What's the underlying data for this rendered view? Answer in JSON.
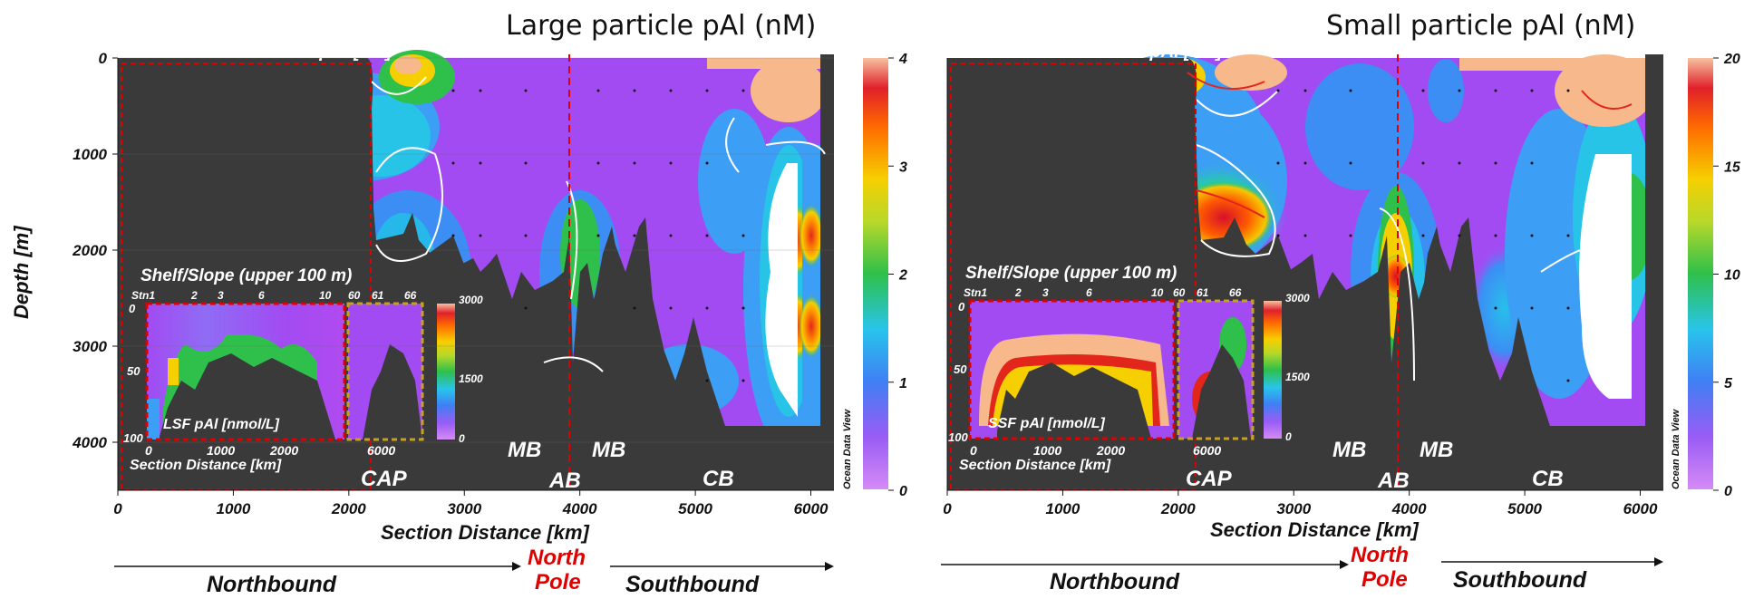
{
  "chart_data": [
    {
      "type": "heatmap",
      "title": "Large particle pAl (nM)",
      "xlabel": "Section Distance [km]",
      "ylabel": "Depth [m]",
      "xlim": [
        0,
        6200
      ],
      "ylim": [
        0,
        4500
      ],
      "x_ticks": [
        "0",
        "1000",
        "2000",
        "3000",
        "4000",
        "5000",
        "6000"
      ],
      "y_ticks": [
        "0",
        "1000",
        "2000",
        "3000",
        "4000"
      ],
      "colorbar": {
        "min": 0,
        "max": 4,
        "ticks": [
          "0",
          "1",
          "2",
          "3",
          "4"
        ]
      },
      "contour_header": "White Contours: LSF pAl [nM]",
      "basins": [
        "CAP",
        "MB",
        "AB",
        "MB",
        "CB"
      ],
      "inset": {
        "title": "Shelf/Slope (upper 100 m)",
        "label": "LSF pAl [nmol/L]",
        "xlabel": "Section Distance [km]",
        "stations": [
          "Stn1",
          "2",
          "3",
          "6",
          "10",
          "60",
          "61",
          "66"
        ],
        "x_ticks": [
          "0",
          "1000",
          "2000",
          "6000"
        ],
        "y_ticks": [
          "0",
          "50",
          "100"
        ],
        "colorbar_ticks": [
          "3000",
          "1500",
          "0"
        ]
      },
      "colorbar_credit": "Ocean Data View",
      "direction_labels": {
        "left": "Northbound",
        "center": [
          "North",
          "Pole"
        ],
        "right": "Southbound"
      }
    },
    {
      "type": "heatmap",
      "title": "Small particle pAl (nM)",
      "xlabel": "Section Distance [km]",
      "ylabel": "",
      "xlim": [
        0,
        6200
      ],
      "ylim": [
        0,
        4500
      ],
      "x_ticks": [
        "0",
        "1000",
        "2000",
        "3000",
        "4000",
        "5000",
        "6000"
      ],
      "colorbar": {
        "min": 0,
        "max": 20,
        "ticks": [
          "0",
          "5",
          "10",
          "15",
          "20"
        ]
      },
      "contour_header": "White Contours: SSF pAl [nM]",
      "basins": [
        "CAP",
        "MB",
        "AB",
        "MB",
        "CB"
      ],
      "inset": {
        "title": "Shelf/Slope (upper 100 m)",
        "label": "SSF pAl [nmol/L]",
        "xlabel": "Section Distance [km]",
        "stations": [
          "Stn1",
          "2",
          "3",
          "6",
          "10",
          "60",
          "61",
          "66"
        ],
        "x_ticks": [
          "0",
          "1000",
          "2000",
          "6000"
        ],
        "y_ticks": [
          "0",
          "50",
          "100"
        ],
        "colorbar_ticks": [
          "3000",
          "1500",
          "0"
        ]
      },
      "colorbar_credit": "Ocean Data View",
      "direction_labels": {
        "left": "Northbound",
        "center": [
          "North",
          "Pole"
        ],
        "right": "Southbound"
      }
    }
  ],
  "colors": {
    "purple": "#a24bf2",
    "violet": "#8f5cf5",
    "blue": "#3c9ef5",
    "cyan": "#26c6e8",
    "green": "#2ec04a",
    "yellow": "#f2d100",
    "orange": "#ff7a00",
    "red": "#e3261c",
    "peach": "#f7b98c",
    "topography": "#3a3a3a",
    "north_pole": "#e00000"
  }
}
